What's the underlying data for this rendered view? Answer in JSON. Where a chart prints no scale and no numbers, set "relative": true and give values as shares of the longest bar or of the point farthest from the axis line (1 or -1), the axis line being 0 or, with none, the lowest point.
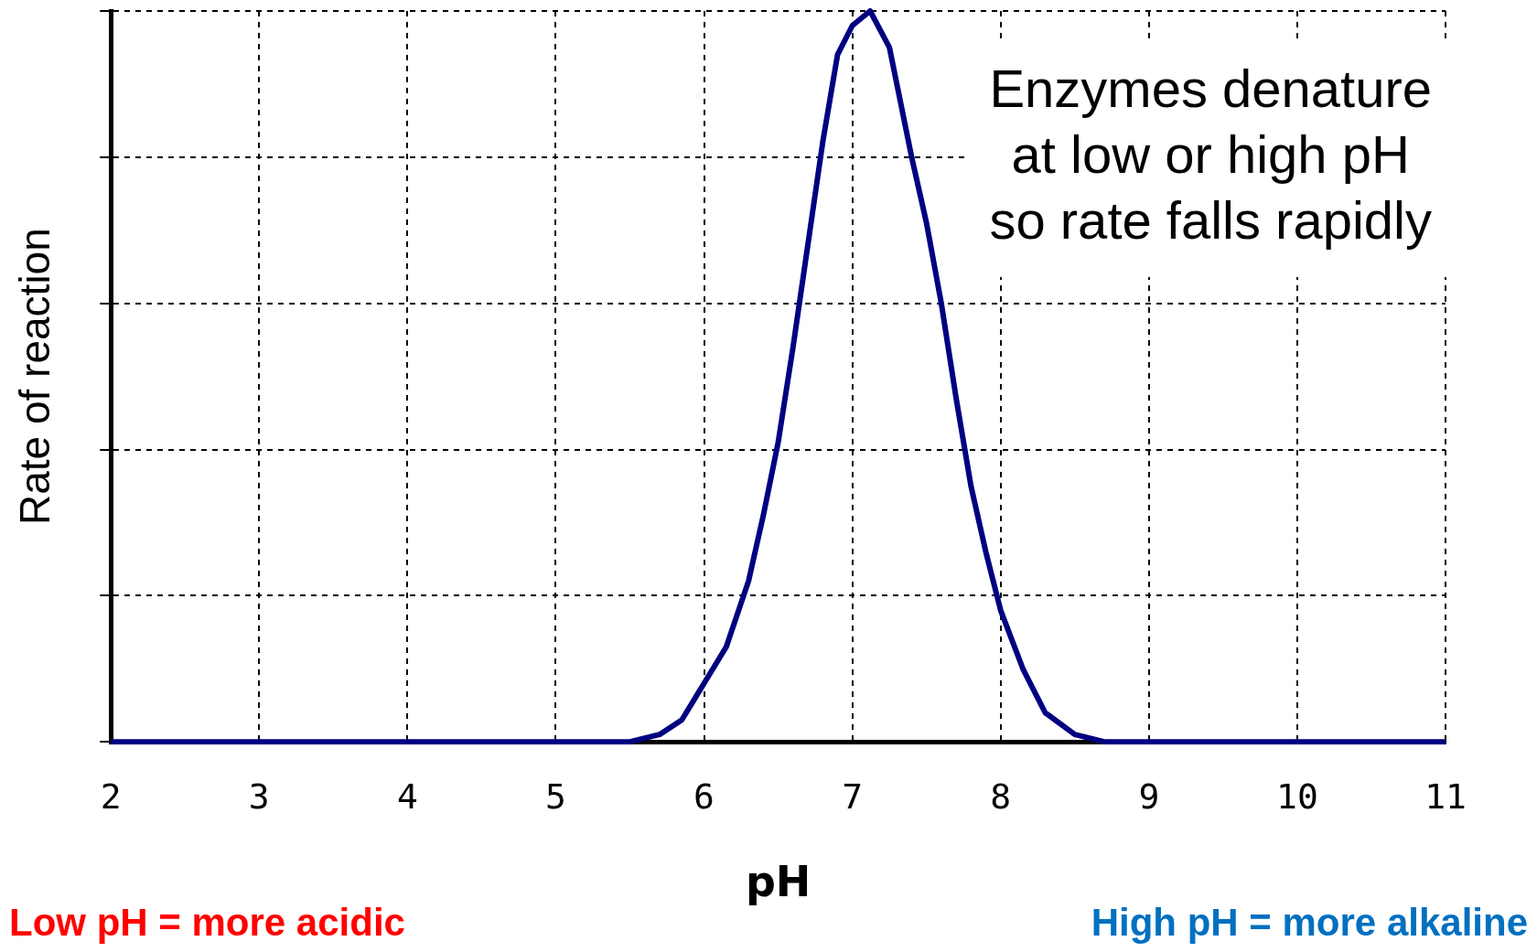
{
  "chart_data": {
    "type": "line",
    "xlabel": "pH",
    "ylabel": "Rate of reaction",
    "relative": true,
    "x": [
      2,
      5.5,
      5.7,
      5.85,
      6,
      6.15,
      6.3,
      6.4,
      6.5,
      6.6,
      6.7,
      6.8,
      6.9,
      7,
      7.12,
      7.25,
      7.4,
      7.5,
      7.6,
      7.7,
      7.8,
      7.9,
      8,
      8.15,
      8.3,
      8.5,
      8.7,
      11
    ],
    "series": [
      {
        "color": "#000080",
        "values": [
          0,
          0,
          0.01,
          0.03,
          0.08,
          0.13,
          0.22,
          0.31,
          0.41,
          0.54,
          0.68,
          0.82,
          0.94,
          0.98,
          1,
          0.95,
          0.8,
          0.71,
          0.6,
          0.47,
          0.35,
          0.26,
          0.18,
          0.1,
          0.04,
          0.01,
          0,
          0
        ]
      }
    ],
    "xlim": [
      2,
      11
    ],
    "xticks": [
      2,
      3,
      4,
      5,
      6,
      7,
      8,
      9,
      10,
      11
    ],
    "grid": true,
    "legend": false,
    "marker": "none",
    "line_style": "solid",
    "annotations": [
      "Enzymes denature\nat low or high pH\nso rate falls rapidly",
      "Low pH = more acidic",
      "High pH = more alkaline"
    ]
  }
}
